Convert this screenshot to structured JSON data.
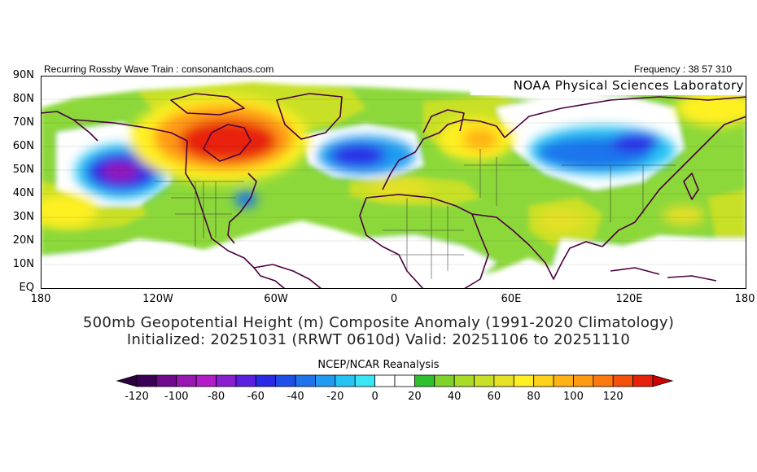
{
  "header": {
    "left": "Recurring Rossby Wave Train : consonantchaos.com",
    "right": "Frequency : 38 57 310"
  },
  "map": {
    "label": "NOAA Physical Sciences Laboratory",
    "lat_labels": [
      "90N",
      "80N",
      "70N",
      "60N",
      "50N",
      "40N",
      "30N",
      "20N",
      "10N",
      "EQ"
    ],
    "lon_labels": [
      "180",
      "120W",
      "60W",
      "0",
      "60E",
      "120E",
      "180"
    ],
    "field": "500mb geopotential height composite anomaly",
    "colors": {
      "coast": "#4a0040",
      "border": "#333333"
    }
  },
  "title": {
    "line1": "500mb Geopotential Height (m) Composite Anomaly (1991-2020 Climatology)",
    "line2": "Initialized: 20251031 (RRWT 0610d) Valid: 20251106 to 20251110"
  },
  "source": "NCEP/NCAR Reanalysis",
  "colorbar": {
    "labels": [
      "-120",
      "-100",
      "-80",
      "-60",
      "-40",
      "-20",
      "0",
      "20",
      "40",
      "60",
      "80",
      "100",
      "120"
    ],
    "colors": [
      "#3a0058",
      "#6f0a8f",
      "#9a17b4",
      "#b31cc8",
      "#8a1fd0",
      "#5a1fe0",
      "#2a2ae6",
      "#1f4fe8",
      "#1f74ec",
      "#1f9cf0",
      "#26c4f4",
      "#39e6f6",
      "#ffffff",
      "#ffffff",
      "#2ec02e",
      "#7ed42a",
      "#a8dc26",
      "#c8e026",
      "#e6e026",
      "#fff024",
      "#ffd21a",
      "#ffb216",
      "#ff9a12",
      "#ff7a0e",
      "#f5500c",
      "#e8220a"
    ]
  }
}
